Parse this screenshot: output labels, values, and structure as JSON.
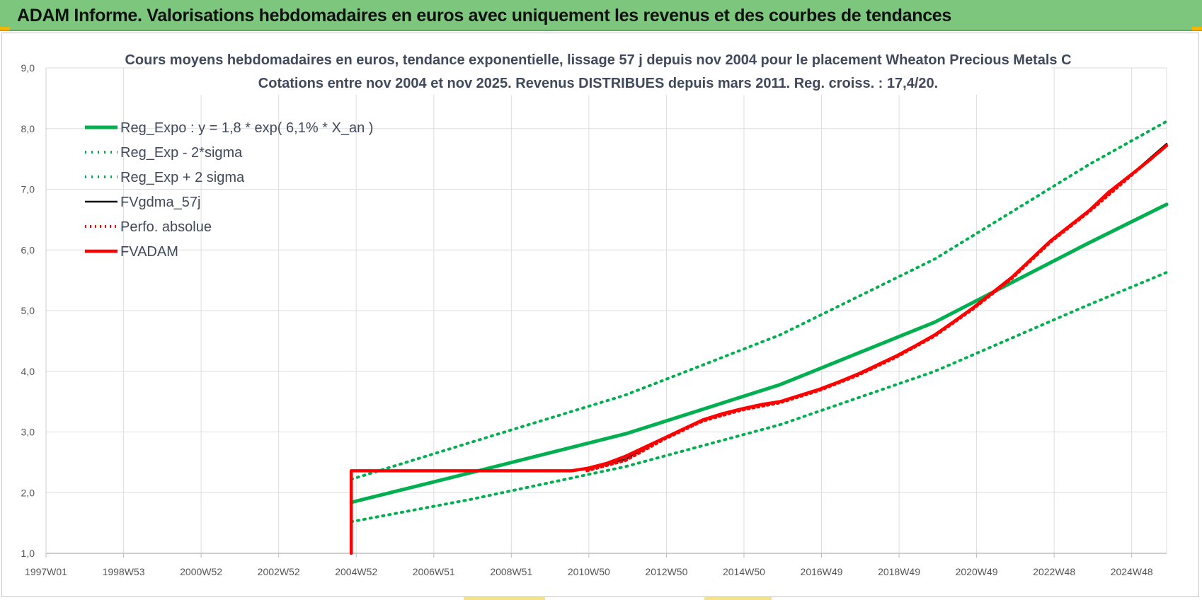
{
  "banner": {
    "title": "ADAM Informe. Valorisations hebdomadaires en euros avec uniquement les revenus et des courbes de tendances"
  },
  "colors": {
    "banner": "#7dc67e",
    "reg_expo": "#00b050",
    "perfo": "#ff0000",
    "fvadam": "#ff0000",
    "fvgdma": "#000000"
  },
  "chart_data": {
    "type": "line",
    "title": "Cours moyens hebdomadaires en euros, tendance exponentielle, lissage 57 j depuis nov 2004 pour le placement Wheaton Precious Metals C",
    "subtitle": "Cotations entre nov 2004 et nov 2025. Revenus DISTRIBUES depuis mars 2011. Reg. croiss. : 17,4/20.",
    "xlabel": "",
    "ylabel": "",
    "ylim": [
      1.0,
      9.0
    ],
    "y_ticks": [
      "1,0",
      "2,0",
      "3,0",
      "4,0",
      "5,0",
      "6,0",
      "7,0",
      "8,0",
      "9,0"
    ],
    "xlim": [
      1997.0,
      2026.0
    ],
    "x_ticks": [
      "1997W01",
      "1998W53",
      "2000W52",
      "2002W52",
      "2004W52",
      "2006W51",
      "2008W51",
      "2010W50",
      "2012W50",
      "2014W50",
      "2016W49",
      "2018W49",
      "2020W49",
      "2022W48",
      "2024W48"
    ],
    "grid": true,
    "legend_position": "top-left",
    "series": [
      {
        "name": "Reg_Expo : y = 1,8 * exp( 6,1% *  X_an )",
        "style": "solid",
        "x": [
          2004.9,
          2008,
          2012,
          2016,
          2020,
          2024,
          2026
        ],
        "y": [
          1.84,
          2.33,
          2.97,
          3.78,
          4.81,
          6.12,
          6.75
        ]
      },
      {
        "name": "Reg_Exp - 2*sigma",
        "style": "dotted",
        "x": [
          2004.9,
          2008,
          2012,
          2016,
          2020,
          2024,
          2026
        ],
        "y": [
          1.52,
          1.89,
          2.43,
          3.12,
          4.0,
          5.1,
          5.63
        ]
      },
      {
        "name": "Reg_Exp + 2 sigma",
        "style": "dotted",
        "x": [
          2004.9,
          2008,
          2012,
          2016,
          2020,
          2024,
          2026
        ],
        "y": [
          2.22,
          2.83,
          3.61,
          4.6,
          5.85,
          7.41,
          8.12
        ]
      },
      {
        "name": "FVgdma_57j",
        "style": "solid-thin",
        "x": [
          2011,
          2012,
          2013,
          2014,
          2015,
          2016,
          2017,
          2018,
          2019,
          2020,
          2021,
          2022,
          2023,
          2024,
          2025,
          2026
        ],
        "y": [
          2.38,
          2.55,
          2.9,
          3.2,
          3.38,
          3.5,
          3.7,
          3.95,
          4.25,
          4.6,
          5.05,
          5.55,
          6.15,
          6.65,
          7.2,
          7.75
        ]
      },
      {
        "name": "Perfo. absolue",
        "style": "dotted",
        "x": [
          2011,
          2012,
          2013,
          2014,
          2015,
          2016,
          2017,
          2018,
          2019,
          2020,
          2021,
          2022,
          2023,
          2024,
          2025,
          2026
        ],
        "y": [
          2.36,
          2.53,
          2.88,
          3.18,
          3.36,
          3.48,
          3.68,
          3.93,
          4.23,
          4.58,
          5.03,
          5.53,
          6.13,
          6.63,
          7.18,
          7.72
        ]
      },
      {
        "name": "FVADAM",
        "style": "solid-thick",
        "x": [
          2004.9,
          2004.9,
          2010.6,
          2011,
          2011.5,
          2012,
          2012.5,
          2013,
          2013.5,
          2014,
          2014.5,
          2015,
          2015.5,
          2016,
          2016.5,
          2017,
          2017.5,
          2018,
          2018.5,
          2019,
          2019.5,
          2020,
          2020.5,
          2021,
          2021.5,
          2022,
          2022.5,
          2023,
          2023.5,
          2024,
          2024.5,
          2025,
          2025.5,
          2026
        ],
        "y": [
          1.0,
          2.36,
          2.36,
          2.4,
          2.48,
          2.6,
          2.75,
          2.9,
          3.05,
          3.2,
          3.3,
          3.38,
          3.45,
          3.5,
          3.6,
          3.7,
          3.82,
          3.95,
          4.1,
          4.25,
          4.42,
          4.6,
          4.82,
          5.05,
          5.3,
          5.55,
          5.85,
          6.15,
          6.4,
          6.65,
          6.95,
          7.2,
          7.45,
          7.72
        ]
      }
    ]
  }
}
